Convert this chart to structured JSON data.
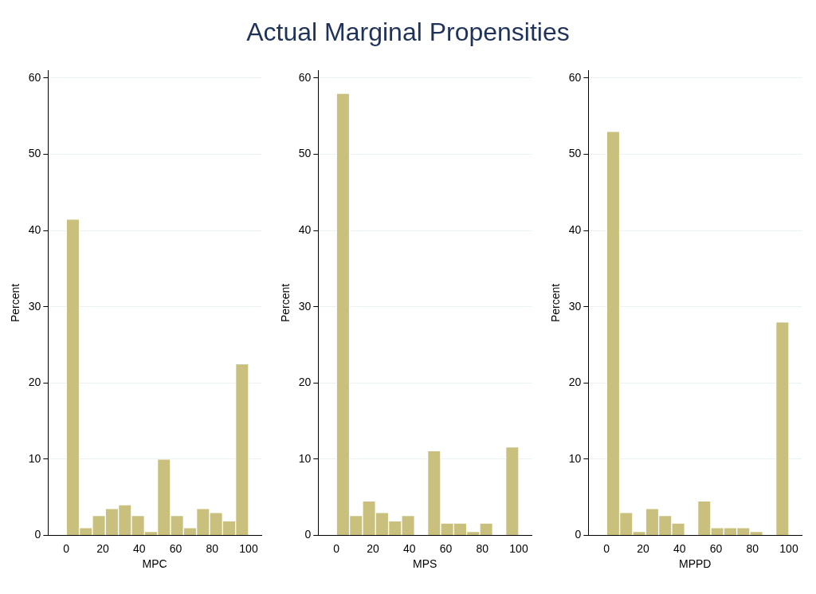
{
  "chart_data": [
    {
      "type": "other",
      "title": "Actual Marginal Propensities"
    },
    {
      "type": "histogram",
      "xlabel": "MPC",
      "ylabel": "Percent",
      "color": "#c8c07c",
      "bins": [
        0,
        7.14,
        14.29,
        21.43,
        28.57,
        35.71,
        42.86,
        50,
        57.14,
        64.29,
        71.43,
        78.57,
        85.71,
        92.86,
        100
      ],
      "values": [
        41.5,
        1.0,
        2.6,
        3.5,
        4.0,
        2.6,
        0.5,
        10.0,
        2.6,
        1.0,
        3.5,
        3.0,
        1.9,
        22.5
      ],
      "xlim": [
        -10,
        107
      ],
      "xticks": [
        0,
        20,
        40,
        60,
        80,
        100
      ],
      "ylim": [
        0,
        61
      ],
      "yticks": [
        0,
        10,
        20,
        30,
        40,
        50,
        60
      ],
      "grid": "y"
    },
    {
      "type": "histogram",
      "xlabel": "MPS",
      "ylabel": "Percent",
      "color": "#c8c07c",
      "bins": [
        0,
        7.14,
        14.29,
        21.43,
        28.57,
        35.71,
        42.86,
        50,
        57.14,
        64.29,
        71.43,
        78.57,
        85.71,
        92.86,
        100
      ],
      "values": [
        58,
        2.6,
        4.5,
        3.0,
        1.9,
        2.6,
        0,
        11.1,
        1.6,
        1.6,
        0.5,
        1.6,
        0,
        11.6
      ],
      "xlim": [
        -10,
        107
      ],
      "xticks": [
        0,
        20,
        40,
        60,
        80,
        100
      ],
      "ylim": [
        0,
        61
      ],
      "yticks": [
        0,
        10,
        20,
        30,
        40,
        50,
        60
      ],
      "grid": "y"
    },
    {
      "type": "histogram",
      "xlabel": "MPPD",
      "ylabel": "Percent",
      "color": "#c8c07c",
      "bins": [
        0,
        7.14,
        14.29,
        21.43,
        28.57,
        35.71,
        42.86,
        50,
        57.14,
        64.29,
        71.43,
        78.57,
        85.71,
        92.86,
        100
      ],
      "values": [
        53,
        3.0,
        0.5,
        3.5,
        2.6,
        1.6,
        0,
        4.5,
        1.0,
        1.0,
        1.0,
        0.5,
        0,
        28
      ],
      "xlim": [
        -10,
        107
      ],
      "xticks": [
        0,
        20,
        40,
        60,
        80,
        100
      ],
      "ylim": [
        0,
        61
      ],
      "yticks": [
        0,
        10,
        20,
        30,
        40,
        50,
        60
      ],
      "grid": "y"
    }
  ]
}
